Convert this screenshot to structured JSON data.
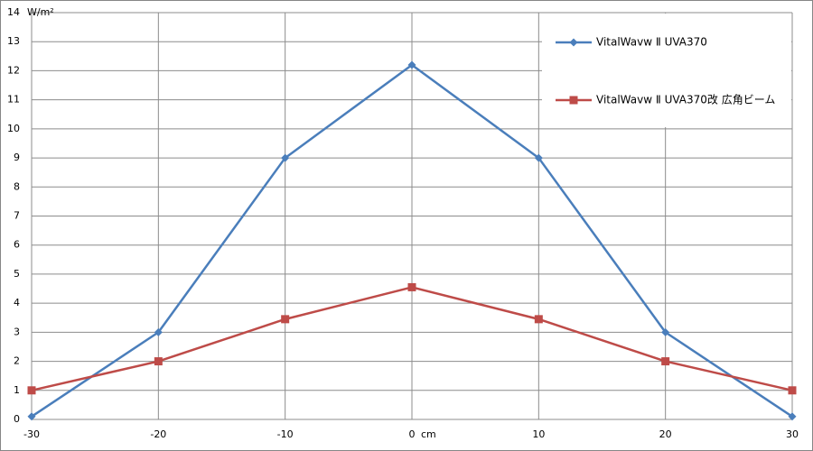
{
  "chart_data": {
    "type": "line",
    "x": [
      -30,
      -20,
      -10,
      0,
      10,
      20,
      30
    ],
    "x_label": "cm",
    "y_label": "W/m²",
    "xlim": [
      -30,
      30
    ],
    "xticks": [
      -30,
      -20,
      -10,
      0,
      10,
      20,
      30
    ],
    "ylim": [
      0,
      14
    ],
    "yticks": [
      0,
      1,
      2,
      3,
      4,
      5,
      6,
      7,
      8,
      9,
      10,
      11,
      12,
      13,
      14
    ],
    "grid": true,
    "legend": "upper right",
    "series": [
      {
        "name": "VitalWavw Ⅱ  UVA370",
        "color": "#4a7ebb",
        "marker": "diamond",
        "values": [
          0.1,
          3,
          9,
          12.2,
          9,
          3,
          0.1
        ]
      },
      {
        "name": "VitalWavw Ⅱ  UVA370改  広角ビーム",
        "color": "#be4b48",
        "marker": "square",
        "values": [
          1,
          2,
          3.45,
          4.55,
          3.45,
          2,
          1
        ]
      }
    ]
  }
}
